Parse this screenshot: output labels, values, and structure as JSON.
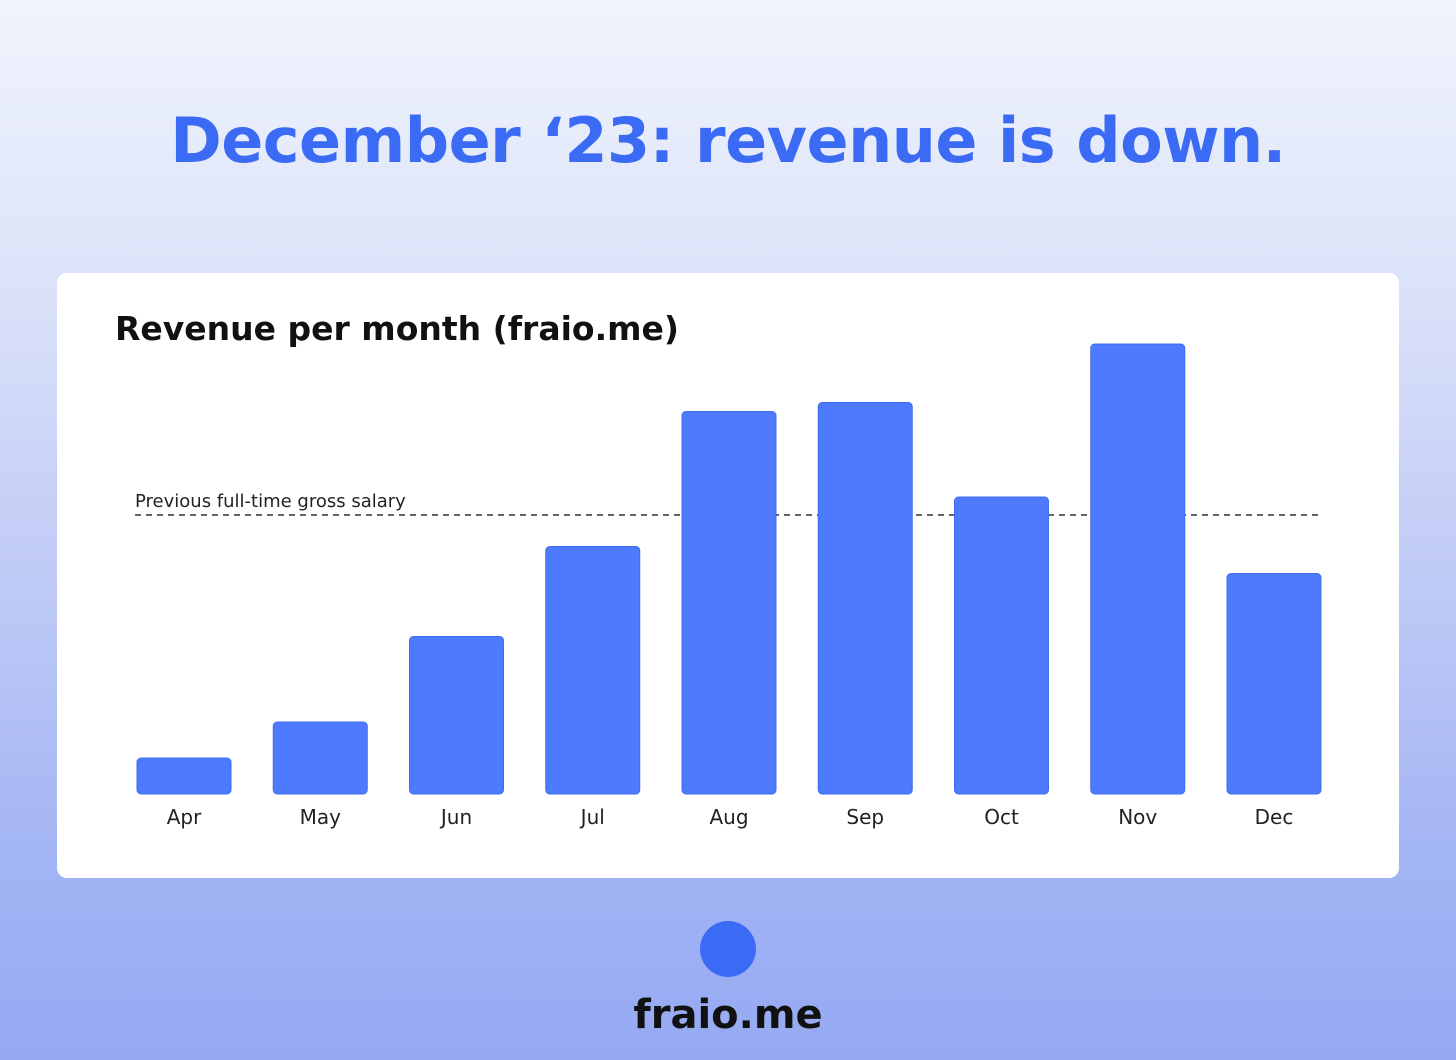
{
  "headline": "December ‘23: revenue is down.",
  "chart_data": {
    "type": "bar",
    "title": "Revenue per month (fraio.me)",
    "xlabel": "",
    "ylabel": "",
    "categories": [
      "Apr",
      "May",
      "Jun",
      "Jul",
      "Aug",
      "Sep",
      "Oct",
      "Nov",
      "Dec"
    ],
    "values": [
      8,
      16,
      35,
      55,
      85,
      87,
      66,
      100,
      49
    ],
    "ylim": [
      0,
      100
    ],
    "grid": false,
    "bar_color": "#4e7bfd",
    "reference_line": {
      "label": "Previous full-time gross salary",
      "value": 62
    }
  },
  "brand": {
    "name": "fraio.me",
    "color": "#3b6bf4"
  }
}
